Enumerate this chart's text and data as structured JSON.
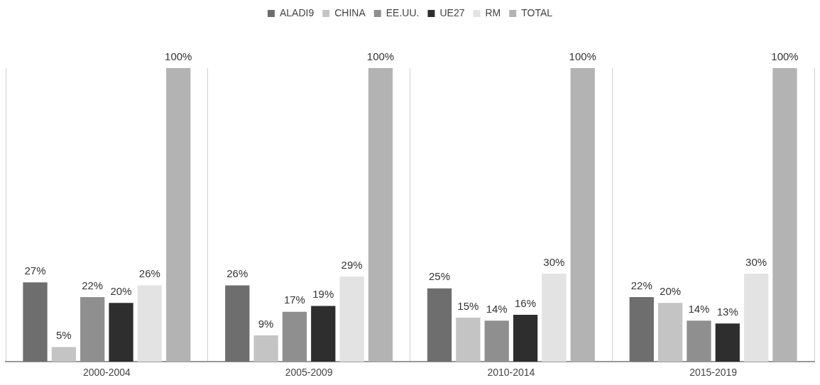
{
  "chart_data": {
    "type": "bar",
    "categories": [
      "2000-2004",
      "2005-2009",
      "2010-2014",
      "2015-2019"
    ],
    "series": [
      {
        "name": "ALADI9",
        "color": "#6e6e6e",
        "values": [
          27,
          26,
          25,
          22
        ],
        "value_labels": [
          "27%",
          "26%",
          "25%",
          "22%"
        ]
      },
      {
        "name": "CHINA",
        "color": "#c4c4c4",
        "values": [
          5,
          9,
          15,
          20
        ],
        "value_labels": [
          "5%",
          "9%",
          "15%",
          "20%"
        ]
      },
      {
        "name": "EE.UU.",
        "color": "#8f8f8f",
        "values": [
          22,
          17,
          14,
          14
        ],
        "value_labels": [
          "22%",
          "17%",
          "14%",
          "14%"
        ]
      },
      {
        "name": "UE27",
        "color": "#2e2e2e",
        "values": [
          20,
          19,
          16,
          13
        ],
        "value_labels": [
          "20%",
          "19%",
          "16%",
          "13%"
        ]
      },
      {
        "name": "RM",
        "color": "#e3e3e3",
        "values": [
          26,
          29,
          30,
          30
        ],
        "value_labels": [
          "26%",
          "29%",
          "30%",
          "30%"
        ]
      },
      {
        "name": "TOTAL",
        "color": "#b3b3b3",
        "values": [
          100,
          100,
          100,
          100
        ],
        "value_labels": [
          "100%",
          "100%",
          "100%",
          "100%"
        ]
      }
    ],
    "grid": "x",
    "legend": "top"
  }
}
